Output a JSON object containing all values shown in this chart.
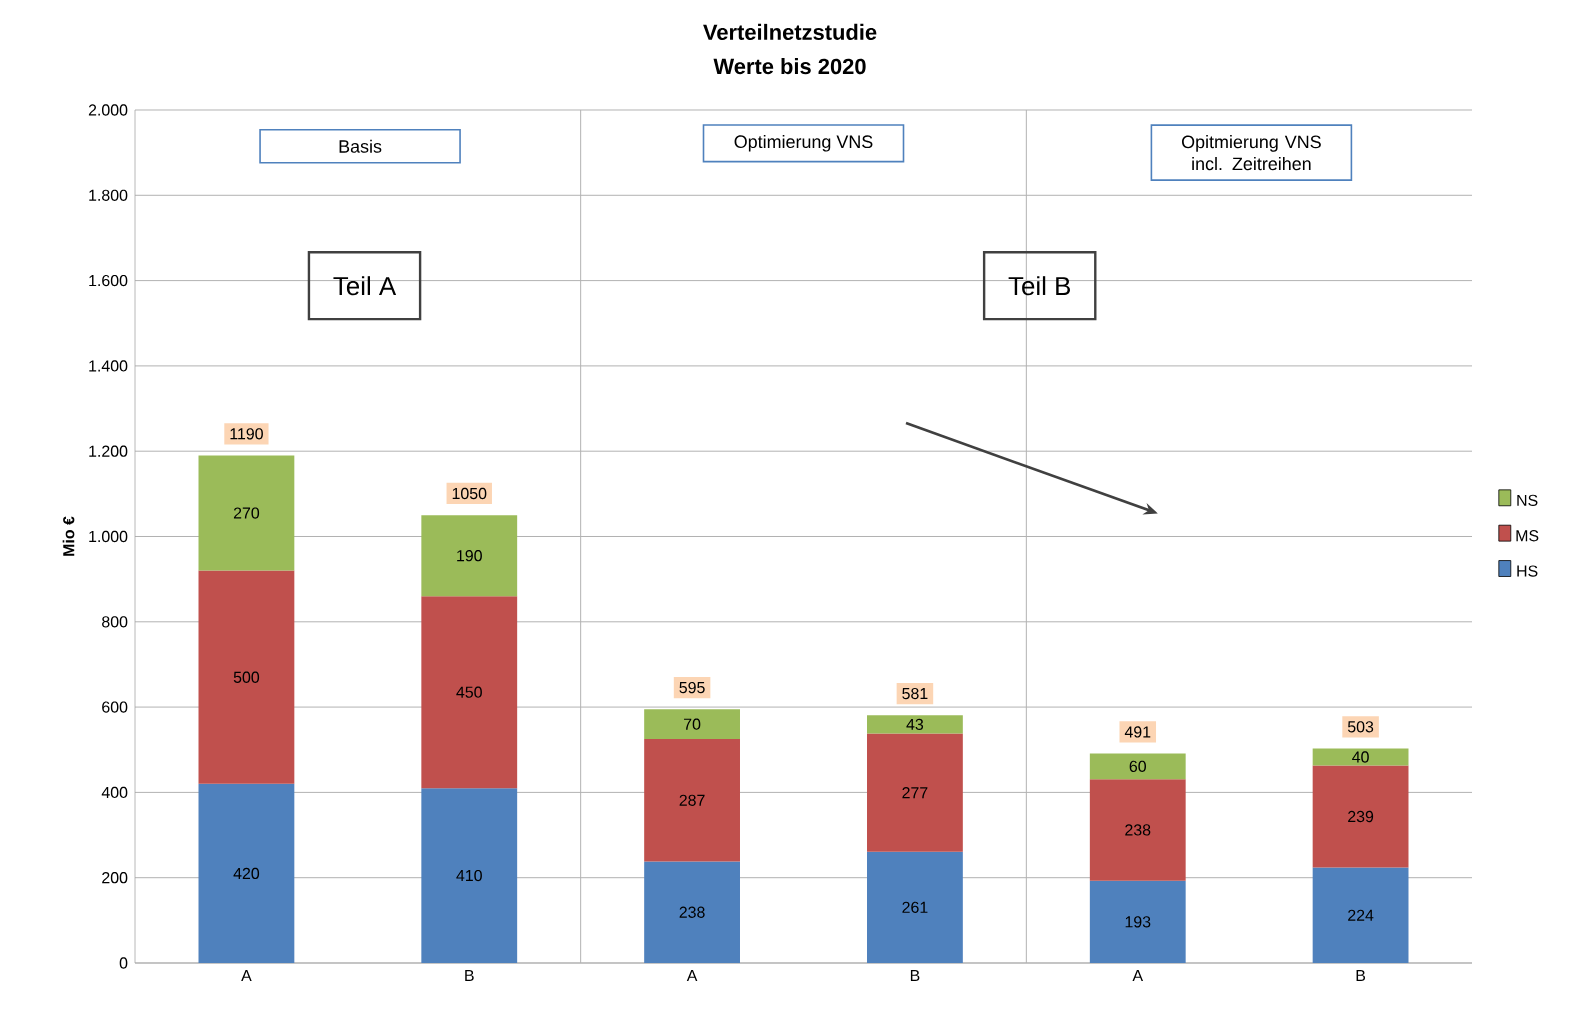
{
  "chart_data": {
    "type": "bar",
    "title": "Verteilnetzstudie",
    "subtitle": "Werte bis 2020",
    "ylabel": "Mio €",
    "categories": [
      "A",
      "B",
      "A",
      "B",
      "A",
      "B"
    ],
    "series": [
      {
        "name": "HS",
        "color": "#4f81bd",
        "values": [
          420,
          410,
          238,
          261,
          193,
          224
        ]
      },
      {
        "name": "MS",
        "color": "#c0504d",
        "values": [
          500,
          450,
          287,
          277,
          238,
          239
        ]
      },
      {
        "name": "NS",
        "color": "#9bbb59",
        "values": [
          270,
          190,
          70,
          43,
          60,
          40
        ]
      }
    ],
    "stacked": true,
    "data_labels": true,
    "totals": [
      "1190",
      "1050",
      "595",
      "581",
      "491",
      "503"
    ],
    "ylim": [
      0,
      2000
    ],
    "yticks": [
      0,
      200,
      400,
      600,
      800,
      {
        "value": 1000,
        "label": "1.000"
      },
      {
        "value": 1200,
        "label": "1.200"
      },
      {
        "value": 1400,
        "label": "1.400"
      },
      {
        "value": 1600,
        "label": "1.600"
      },
      {
        "value": 1800,
        "label": "1.800"
      },
      {
        "value": 2000,
        "label": "2.000"
      }
    ],
    "grid": true,
    "legend": "right",
    "annotations": [
      "Basis",
      "Optimierung VNS",
      "Opitmierung VNS incl. Zeitreihen",
      "Teil A",
      "Teil B"
    ]
  }
}
